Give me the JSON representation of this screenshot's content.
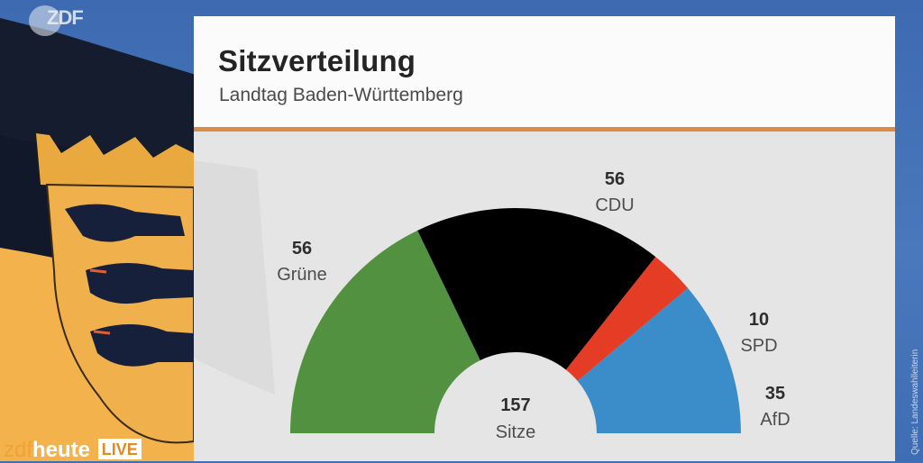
{
  "broadcast": {
    "channel_logo": "ZDF",
    "program_brand": "zdf",
    "program_name": "heute",
    "live_badge": "LIVE",
    "source_credit": "Quelle: Landeswahlleiterin"
  },
  "card": {
    "title": "Sitzverteilung",
    "subtitle": "Landtag Baden-Württemberg"
  },
  "colors": {
    "accent_rule": "#d98e48",
    "Grüne": "#52913f",
    "CDU": "#000000",
    "SPD": "#e53d25",
    "AfD": "#3a8dc8"
  },
  "chart_data": {
    "type": "pie",
    "subtype": "half-donut parliament seat distribution",
    "title": "Sitzverteilung",
    "subtitle": "Landtag Baden-Württemberg",
    "center_value": "157",
    "center_label": "Sitze",
    "total": 157,
    "categories": [
      "Grüne",
      "CDU",
      "SPD",
      "AfD"
    ],
    "values": [
      56,
      56,
      10,
      35
    ],
    "value_labels": [
      "56",
      "56",
      "10",
      "35"
    ],
    "colors": [
      "#52913f",
      "#000000",
      "#e53d25",
      "#3a8dc8"
    ],
    "order": "left-to-right"
  }
}
